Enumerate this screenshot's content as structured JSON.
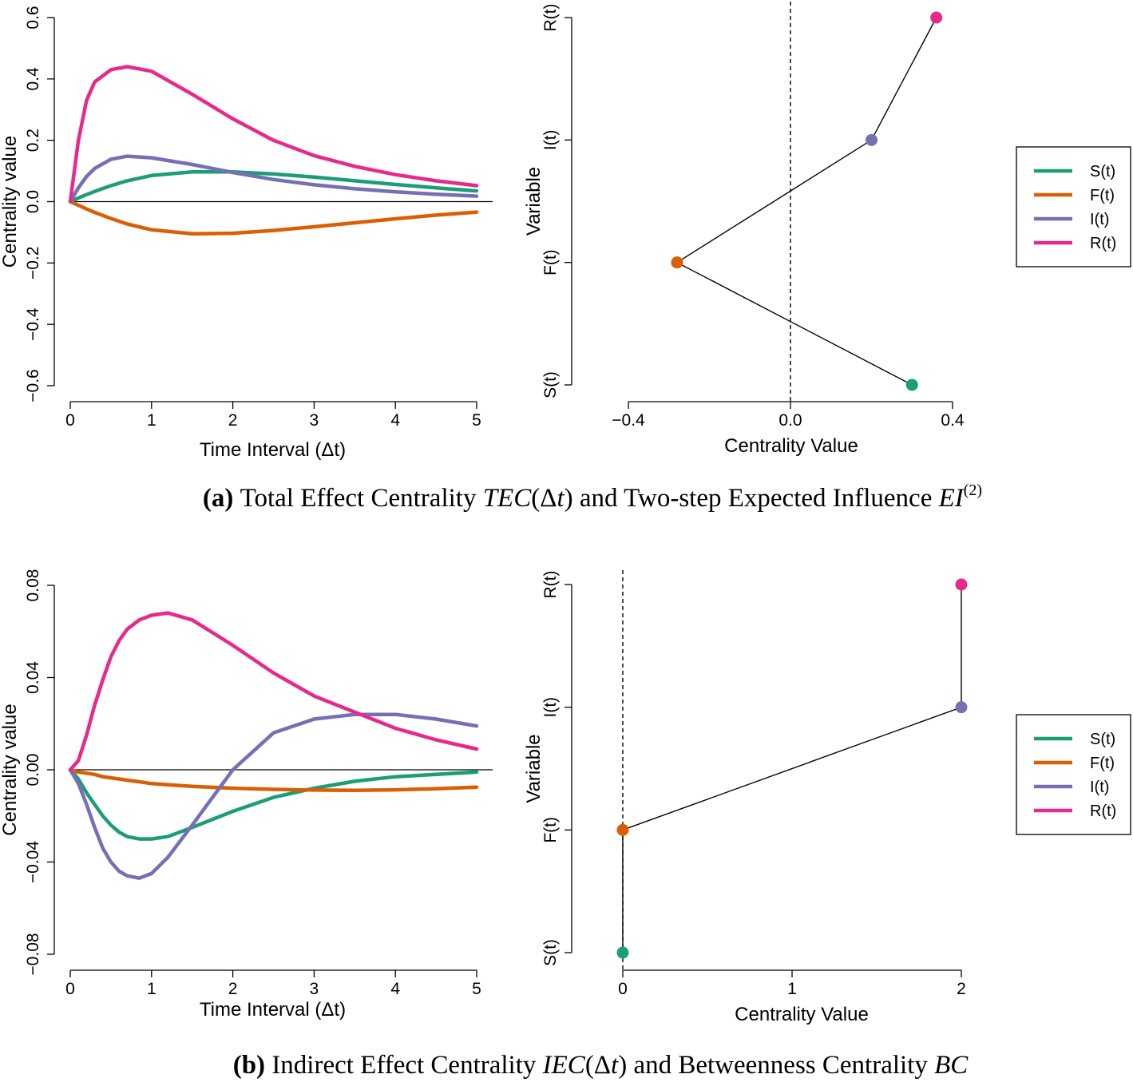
{
  "colors": {
    "S(t)": "#1b9e77",
    "F(t)": "#d95f02",
    "I(t)": "#7570b3",
    "R(t)": "#e7298a"
  },
  "captions": {
    "a": {
      "label": "(a)",
      "parts": [
        {
          "t": "Total Effect Centrality ",
          "i": false
        },
        {
          "t": "TEC",
          "i": true
        },
        {
          "t": "(Δ",
          "i": false
        },
        {
          "t": "t",
          "i": true
        },
        {
          "t": ") and Two-step Expected Influence ",
          "i": false
        },
        {
          "t": "EI",
          "i": true
        }
      ],
      "sup": "(2)"
    },
    "b": {
      "label": "(b)",
      "parts": [
        {
          "t": "Indirect Effect Centrality ",
          "i": false
        },
        {
          "t": "IEC",
          "i": true
        },
        {
          "t": "(Δ",
          "i": false
        },
        {
          "t": "t",
          "i": true
        },
        {
          "t": ") and Betweenness Centrality ",
          "i": false
        },
        {
          "t": "BC",
          "i": true
        }
      ],
      "sup": ""
    }
  },
  "chart_data": [
    {
      "id": "a-left",
      "type": "line",
      "xlabel": "Time Interval (Δt)",
      "ylabel": "Centrality value",
      "xlim": [
        0,
        5
      ],
      "ylim": [
        -0.6,
        0.6
      ],
      "xticks": [
        0,
        1,
        2,
        3,
        4,
        5
      ],
      "xtick_labels": [
        "0",
        "1",
        "2",
        "3",
        "4",
        "5"
      ],
      "yticks": [
        -0.6,
        -0.4,
        -0.2,
        0.0,
        0.2,
        0.4,
        0.6
      ],
      "ytick_labels": [
        "−0.6",
        "−0.4",
        "−0.2",
        "0.0",
        "0.2",
        "0.4",
        "0.6"
      ],
      "hline": 0,
      "x": [
        0,
        0.1,
        0.2,
        0.3,
        0.5,
        0.7,
        1.0,
        1.5,
        2.0,
        2.5,
        3.0,
        3.5,
        4.0,
        4.5,
        5.0
      ],
      "series": [
        {
          "name": "S(t)",
          "values": [
            0,
            0.012,
            0.023,
            0.033,
            0.052,
            0.068,
            0.085,
            0.097,
            0.097,
            0.09,
            0.08,
            0.068,
            0.056,
            0.045,
            0.035
          ]
        },
        {
          "name": "F(t)",
          "values": [
            0,
            -0.012,
            -0.024,
            -0.035,
            -0.055,
            -0.073,
            -0.092,
            -0.105,
            -0.103,
            -0.094,
            -0.082,
            -0.069,
            -0.056,
            -0.044,
            -0.034
          ]
        },
        {
          "name": "I(t)",
          "values": [
            0,
            0.045,
            0.082,
            0.108,
            0.138,
            0.148,
            0.143,
            0.121,
            0.095,
            0.072,
            0.055,
            0.042,
            0.032,
            0.024,
            0.018
          ]
        },
        {
          "name": "R(t)",
          "values": [
            0,
            0.2,
            0.33,
            0.39,
            0.43,
            0.44,
            0.425,
            0.35,
            0.27,
            0.2,
            0.15,
            0.115,
            0.088,
            0.068,
            0.052
          ]
        }
      ]
    },
    {
      "id": "a-right",
      "type": "scatter",
      "xlabel": "Centrality Value",
      "ylabel": "Variable",
      "xlim": [
        -0.4,
        0.4
      ],
      "xticks": [
        -0.4,
        0.0,
        0.4
      ],
      "xtick_labels": [
        "−0.4",
        "0.0",
        "0.4"
      ],
      "categories": [
        "S(t)",
        "F(t)",
        "I(t)",
        "R(t)"
      ],
      "vline": 0,
      "points": [
        {
          "name": "S(t)",
          "value": 0.3
        },
        {
          "name": "F(t)",
          "value": -0.28
        },
        {
          "name": "I(t)",
          "value": 0.2
        },
        {
          "name": "R(t)",
          "value": 0.36
        }
      ],
      "legend": [
        "S(t)",
        "F(t)",
        "I(t)",
        "R(t)"
      ],
      "legend_position": "right"
    },
    {
      "id": "b-left",
      "type": "line",
      "xlabel": "Time Interval (Δt)",
      "ylabel": "Centrality value",
      "xlim": [
        0,
        5
      ],
      "ylim": [
        -0.08,
        0.08
      ],
      "xticks": [
        0,
        1,
        2,
        3,
        4,
        5
      ],
      "xtick_labels": [
        "0",
        "1",
        "2",
        "3",
        "4",
        "5"
      ],
      "yticks": [
        -0.08,
        -0.04,
        0.0,
        0.04,
        0.08
      ],
      "ytick_labels": [
        "−0.08",
        "−0.04",
        "0.00",
        "0.04",
        "0.08"
      ],
      "hline": 0,
      "x": [
        0,
        0.1,
        0.2,
        0.3,
        0.4,
        0.5,
        0.6,
        0.7,
        0.85,
        1.0,
        1.2,
        1.5,
        2.0,
        2.5,
        3.0,
        3.5,
        4.0,
        4.5,
        5.0
      ],
      "series": [
        {
          "name": "S(t)",
          "values": [
            0,
            -0.004,
            -0.01,
            -0.015,
            -0.02,
            -0.024,
            -0.027,
            -0.029,
            -0.03,
            -0.03,
            -0.029,
            -0.025,
            -0.018,
            -0.012,
            -0.008,
            -0.005,
            -0.003,
            -0.002,
            -0.001
          ]
        },
        {
          "name": "F(t)",
          "values": [
            0,
            -0.001,
            -0.0015,
            -0.002,
            -0.003,
            -0.0035,
            -0.004,
            -0.0045,
            -0.0052,
            -0.006,
            -0.0065,
            -0.0072,
            -0.008,
            -0.0085,
            -0.0088,
            -0.0089,
            -0.0087,
            -0.0082,
            -0.0075
          ]
        },
        {
          "name": "I(t)",
          "values": [
            0,
            -0.006,
            -0.015,
            -0.025,
            -0.034,
            -0.04,
            -0.044,
            -0.046,
            -0.047,
            -0.045,
            -0.038,
            -0.024,
            0.0,
            0.016,
            0.022,
            0.024,
            0.024,
            0.022,
            0.019
          ]
        },
        {
          "name": "R(t)",
          "values": [
            0,
            0.004,
            0.015,
            0.028,
            0.039,
            0.049,
            0.056,
            0.061,
            0.065,
            0.067,
            0.068,
            0.065,
            0.054,
            0.042,
            0.032,
            0.025,
            0.018,
            0.013,
            0.009
          ]
        }
      ]
    },
    {
      "id": "b-right",
      "type": "scatter",
      "xlabel": "Centrality Value",
      "ylabel": "Variable",
      "xlim": [
        0,
        2
      ],
      "xticks": [
        0,
        1,
        2
      ],
      "xtick_labels": [
        "0",
        "1",
        "2"
      ],
      "categories": [
        "S(t)",
        "F(t)",
        "I(t)",
        "R(t)"
      ],
      "vline": 0,
      "points": [
        {
          "name": "S(t)",
          "value": 0
        },
        {
          "name": "F(t)",
          "value": 0
        },
        {
          "name": "I(t)",
          "value": 2
        },
        {
          "name": "R(t)",
          "value": 2
        }
      ],
      "legend": [
        "S(t)",
        "F(t)",
        "I(t)",
        "R(t)"
      ],
      "legend_position": "right"
    }
  ]
}
